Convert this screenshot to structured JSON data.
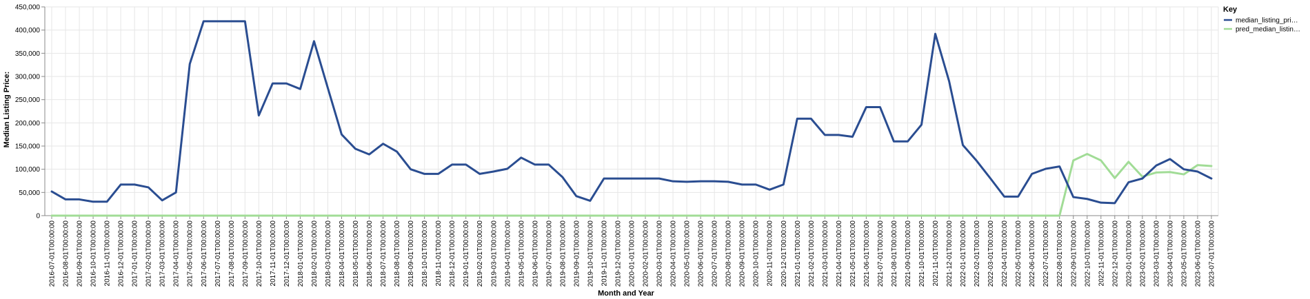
{
  "chart_data": {
    "type": "line",
    "title": "",
    "xlabel": "Month and Year",
    "ylabel": "Median Listing Price:",
    "ylim": [
      0,
      450000
    ],
    "y_ticks": [
      0,
      50000,
      100000,
      150000,
      200000,
      250000,
      300000,
      350000,
      400000,
      450000
    ],
    "y_tick_labels": [
      "0",
      "50,000",
      "100,000",
      "150,000",
      "200,000",
      "250,000",
      "300,000",
      "350,000",
      "400,000",
      "450,000"
    ],
    "grid": true,
    "legend": {
      "title": "Key",
      "placement": "right"
    },
    "categories": [
      "2016-07-01T00:00:00",
      "2016-08-01T00:00:00",
      "2016-09-01T00:00:00",
      "2016-10-01T00:00:00",
      "2016-11-01T00:00:00",
      "2016-12-01T00:00:00",
      "2017-01-01T00:00:00",
      "2017-02-01T00:00:00",
      "2017-03-01T00:00:00",
      "2017-04-01T00:00:00",
      "2017-05-01T00:00:00",
      "2017-06-01T00:00:00",
      "2017-07-01T00:00:00",
      "2017-08-01T00:00:00",
      "2017-09-01T00:00:00",
      "2017-10-01T00:00:00",
      "2017-11-01T00:00:00",
      "2017-12-01T00:00:00",
      "2018-01-01T00:00:00",
      "2018-02-01T00:00:00",
      "2018-03-01T00:00:00",
      "2018-04-01T00:00:00",
      "2018-05-01T00:00:00",
      "2018-06-01T00:00:00",
      "2018-07-01T00:00:00",
      "2018-08-01T00:00:00",
      "2018-09-01T00:00:00",
      "2018-10-01T00:00:00",
      "2018-11-01T00:00:00",
      "2018-12-01T00:00:00",
      "2019-01-01T00:00:00",
      "2019-02-01T00:00:00",
      "2019-03-01T00:00:00",
      "2019-04-01T00:00:00",
      "2019-05-01T00:00:00",
      "2019-06-01T00:00:00",
      "2019-07-01T00:00:00",
      "2019-08-01T00:00:00",
      "2019-09-01T00:00:00",
      "2019-10-01T00:00:00",
      "2019-11-01T00:00:00",
      "2019-12-01T00:00:00",
      "2020-01-01T00:00:00",
      "2020-02-01T00:00:00",
      "2020-03-01T00:00:00",
      "2020-04-01T00:00:00",
      "2020-05-01T00:00:00",
      "2020-06-01T00:00:00",
      "2020-07-01T00:00:00",
      "2020-08-01T00:00:00",
      "2020-09-01T00:00:00",
      "2020-10-01T00:00:00",
      "2020-11-01T00:00:00",
      "2020-12-01T00:00:00",
      "2021-01-01T00:00:00",
      "2021-02-01T00:00:00",
      "2021-03-01T00:00:00",
      "2021-04-01T00:00:00",
      "2021-05-01T00:00:00",
      "2021-06-01T00:00:00",
      "2021-07-01T00:00:00",
      "2021-08-01T00:00:00",
      "2021-09-01T00:00:00",
      "2021-10-01T00:00:00",
      "2021-11-01T00:00:00",
      "2021-12-01T00:00:00",
      "2022-01-01T00:00:00",
      "2022-02-01T00:00:00",
      "2022-03-01T00:00:00",
      "2022-04-01T00:00:00",
      "2022-05-01T00:00:00",
      "2022-06-01T00:00:00",
      "2022-07-01T00:00:00",
      "2022-08-01T00:00:00",
      "2022-09-01T00:00:00",
      "2022-10-01T00:00:00",
      "2022-11-01T00:00:00",
      "2022-12-01T00:00:00",
      "2023-01-01T00:00:00",
      "2023-02-01T00:00:00",
      "2023-03-01T00:00:00",
      "2023-04-01T00:00:00",
      "2023-05-01T00:00:00",
      "2023-06-01T00:00:00",
      "2023-07-01T00:00:00"
    ],
    "series": [
      {
        "name": "median_listing_pri…",
        "color": "#2a4d91",
        "values": [
          52000,
          35000,
          35000,
          30000,
          30000,
          67000,
          67000,
          61000,
          33000,
          50000,
          327000,
          419000,
          419000,
          419000,
          419000,
          216000,
          285000,
          285000,
          273000,
          376000,
          275000,
          175000,
          144000,
          132000,
          155000,
          138000,
          100000,
          90000,
          90000,
          110000,
          110000,
          90000,
          95000,
          101000,
          125000,
          110000,
          110000,
          83000,
          42000,
          32000,
          80000,
          80000,
          80000,
          80000,
          80000,
          74000,
          73000,
          74000,
          74000,
          73000,
          67000,
          67000,
          56000,
          67000,
          209000,
          209000,
          174000,
          174000,
          170000,
          234000,
          234000,
          160000,
          160000,
          196000,
          392000,
          290000,
          152000,
          118000,
          80000,
          41000,
          41000,
          90000,
          101000,
          106000,
          40000,
          36000,
          28000,
          27000,
          72000,
          80000,
          108000,
          122000,
          100000,
          95000,
          80000
        ]
      },
      {
        "name": "pred_median_listin…",
        "color": "#a1dc96",
        "values": [
          0,
          0,
          0,
          0,
          0,
          0,
          0,
          0,
          0,
          0,
          0,
          0,
          0,
          0,
          0,
          0,
          0,
          0,
          0,
          0,
          0,
          0,
          0,
          0,
          0,
          0,
          0,
          0,
          0,
          0,
          0,
          0,
          0,
          0,
          0,
          0,
          0,
          0,
          0,
          0,
          0,
          0,
          0,
          0,
          0,
          0,
          0,
          0,
          0,
          0,
          0,
          0,
          0,
          0,
          0,
          0,
          0,
          0,
          0,
          0,
          0,
          0,
          0,
          0,
          0,
          0,
          0,
          0,
          0,
          0,
          0,
          0,
          0,
          0,
          119000,
          133000,
          119000,
          81000,
          116000,
          84000,
          93000,
          94000,
          89000,
          109000,
          107000
        ]
      }
    ]
  }
}
